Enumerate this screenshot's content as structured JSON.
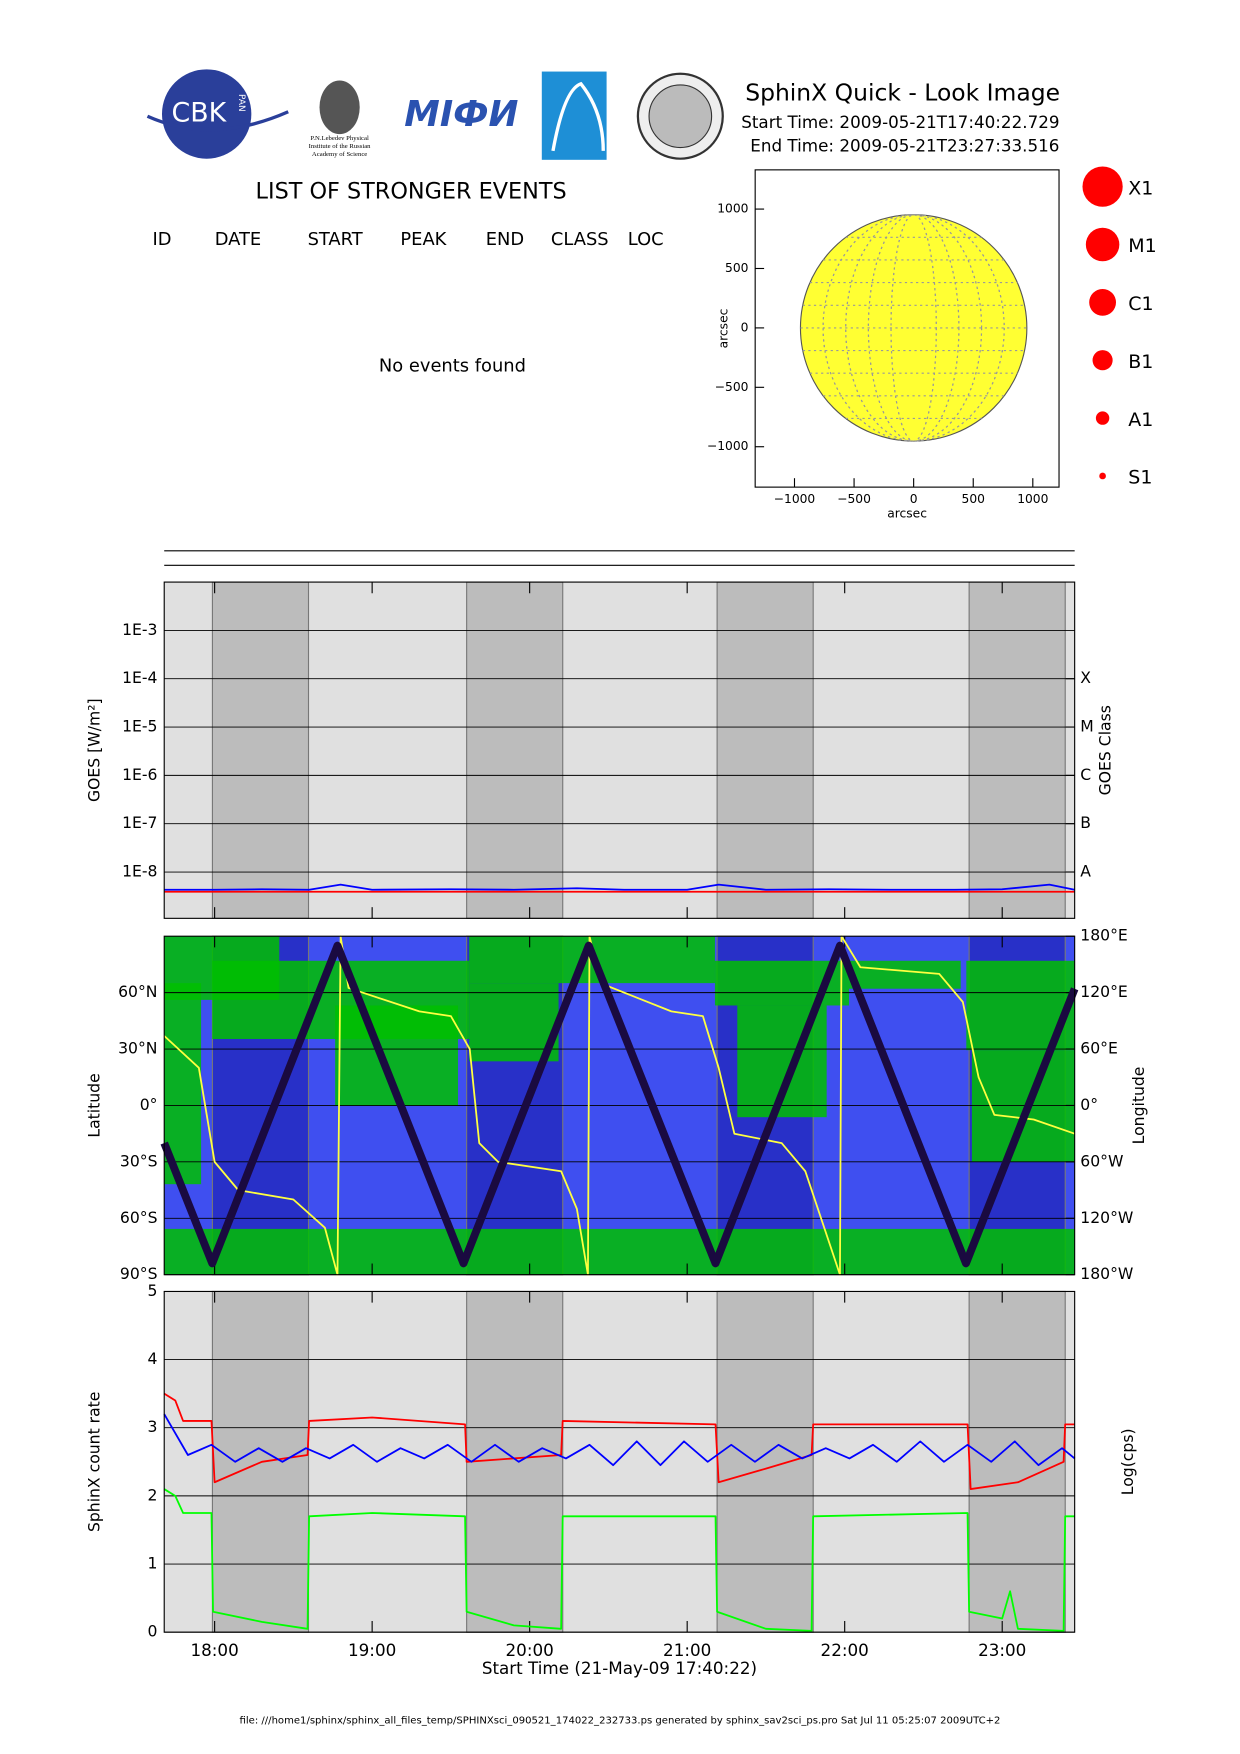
{
  "header": {
    "title": "SphinX Quick - Look Image",
    "start_time": "Start Time: 2009-05-21T17:40:22.729",
    "end_time": "End Time: 2009-05-21T23:27:33.516"
  },
  "logos": {
    "cbk": "CBK",
    "pan": "PAN",
    "lebedev": [
      "P.N.Lebedev Physical",
      "Institute of the Russian",
      "Academy of Science"
    ],
    "mifi": "MIФИ"
  },
  "events": {
    "title": "LIST OF STRONGER EVENTS",
    "columns": [
      "ID",
      "DATE",
      "START",
      "PEAK",
      "END",
      "CLASS",
      "LOC"
    ],
    "message": "No events found"
  },
  "flare_legend": [
    "X1",
    "M1",
    "C1",
    "B1",
    "A1",
    "S1"
  ],
  "shaded_intervals": [
    [
      17.986,
      18.596
    ],
    [
      19.6,
      20.21
    ],
    [
      21.19,
      21.8
    ],
    [
      22.79,
      23.4
    ]
  ],
  "footer": "file: ///home1/sphinx/sphinx_all_files_temp/SPHINXsci_090521_174022_232733.ps generated by sphinx_sav2sci_ps.pro Sat Jul 11 05:25:07 2009UTC+2",
  "chart_data": [
    {
      "type": "disk",
      "xlabel": "arcsec",
      "ylabel": "arcsec",
      "xlim": [
        -1330,
        1220
      ],
      "ylim": [
        -1340,
        1330
      ],
      "xticks": [
        {
          "value": -1000,
          "label": "−1000"
        },
        {
          "value": -500,
          "label": "−500"
        },
        0,
        500,
        1000
      ],
      "yticks": [
        {
          "value": -1000,
          "label": "−1000"
        },
        {
          "value": -500,
          "label": "−500"
        },
        0,
        500,
        1000
      ],
      "disk": {
        "x": 0,
        "y": 0,
        "r": 950,
        "color": "#ffff33"
      }
    },
    {
      "type": "line",
      "log_y": true,
      "ylabel": "GOES [W/m²]",
      "y2label": "GOES Class",
      "xlim": [
        17.68,
        23.46
      ],
      "ylim": [
        1.1e-09,
        0.01
      ],
      "yticks": [
        {
          "value": 1e-08,
          "label": "1E-8"
        },
        {
          "value": 1e-07,
          "label": "1E-7"
        },
        {
          "value": 1e-06,
          "label": "1E-6"
        },
        {
          "value": 1e-05,
          "label": "1E-5"
        },
        {
          "value": 0.0001,
          "label": "1E-4"
        },
        {
          "value": 0.001,
          "label": "1E-3"
        }
      ],
      "y2ticks": [
        {
          "value": 1e-08,
          "label": "A"
        },
        {
          "value": 1e-07,
          "label": "B"
        },
        {
          "value": 1e-06,
          "label": "C"
        },
        {
          "value": 1e-05,
          "label": "M"
        },
        {
          "value": 0.0001,
          "label": "X"
        }
      ],
      "grid": true,
      "series": [
        {
          "color": "#ff0000",
          "x": [
            17.68,
            18.0,
            18.3,
            18.6,
            18.8,
            19.0,
            19.5,
            19.9,
            20.3,
            20.6,
            21.0,
            21.2,
            21.5,
            21.9,
            22.3,
            22.7,
            23.0,
            23.3,
            23.46
          ],
          "values": [
            3.9e-09,
            3.9e-09,
            3.9e-09,
            3.9e-09,
            3.9e-09,
            3.9e-09,
            3.9e-09,
            3.9e-09,
            3.9e-09,
            3.9e-09,
            3.9e-09,
            3.9e-09,
            3.9e-09,
            3.9e-09,
            3.9e-09,
            3.9e-09,
            3.9e-09,
            3.9e-09,
            3.9e-09
          ]
        },
        {
          "color": "#0000ff",
          "x": [
            17.68,
            18.0,
            18.3,
            18.6,
            18.8,
            19.0,
            19.5,
            19.9,
            20.3,
            20.6,
            21.0,
            21.2,
            21.5,
            21.9,
            22.3,
            22.7,
            23.0,
            23.3,
            23.46
          ],
          "values": [
            4.3e-09,
            4.3e-09,
            4.4e-09,
            4.3e-09,
            5.5e-09,
            4.3e-09,
            4.4e-09,
            4.3e-09,
            4.6e-09,
            4.3e-09,
            4.3e-09,
            5.5e-09,
            4.3e-09,
            4.4e-09,
            4.3e-09,
            4.3e-09,
            4.4e-09,
            5.5e-09,
            4.3e-09
          ]
        }
      ]
    },
    {
      "type": "line",
      "ylabel": "Latitude",
      "y2label": "Longitude",
      "xlim": [
        17.68,
        23.46
      ],
      "ylim": [
        -90,
        90
      ],
      "y2lim": [
        -180,
        180
      ],
      "yticks": [
        {
          "value": -90,
          "label": "90°S"
        },
        {
          "value": -60,
          "label": "60°S"
        },
        {
          "value": -30,
          "label": "30°S"
        },
        {
          "value": 0,
          "label": "0°"
        },
        {
          "value": 30,
          "label": "30°N"
        },
        {
          "value": 60,
          "label": "60°N"
        }
      ],
      "y2ticks": [
        {
          "value": -180,
          "label": "180°W"
        },
        {
          "value": -120,
          "label": "120°W"
        },
        {
          "value": -60,
          "label": "60°W"
        },
        {
          "value": 0,
          "label": "0°"
        },
        {
          "value": 60,
          "label": "60°E"
        },
        {
          "value": 120,
          "label": "120°E"
        },
        {
          "value": 180,
          "label": "180°E"
        }
      ],
      "grid": true,
      "series": [
        {
          "color": "#ffff40",
          "axis": "y2",
          "x": [
            17.68,
            17.9,
            18.0,
            18.15,
            18.5,
            18.7,
            18.78,
            18.8,
            18.85,
            19.3,
            19.5,
            19.62,
            19.68,
            19.8,
            20.2,
            20.3,
            20.37,
            20.38,
            20.45,
            20.9,
            21.1,
            21.2,
            21.3,
            21.6,
            21.75,
            21.97,
            21.98,
            22.1,
            22.6,
            22.75,
            22.85,
            22.95,
            23.2,
            23.46
          ],
          "values": [
            74,
            40,
            -60,
            -90,
            -100,
            -130,
            -180,
            180,
            125,
            100,
            95,
            60,
            -40,
            -60,
            -70,
            -110,
            -180,
            180,
            130,
            100,
            95,
            40,
            -30,
            -40,
            -70,
            -180,
            180,
            147,
            140,
            110,
            30,
            -10,
            -15,
            -30
          ]
        },
        {
          "color": "#1a0a40",
          "x": [
            17.68,
            17.985,
            18.78,
            19.58,
            20.375,
            21.18,
            21.97,
            22.77,
            23.46
          ],
          "values": [
            -20,
            -84,
            85,
            -84,
            85,
            -84,
            85,
            -84,
            62
          ]
        }
      ]
    },
    {
      "type": "line",
      "ylabel": "SphinX count rate",
      "y2label": "Log(cps)",
      "xlabel": "Start Time (21-May-09 17:40:22)",
      "xlim": [
        17.68,
        23.46
      ],
      "ylim": [
        0,
        5
      ],
      "yticks": [
        0,
        1,
        2,
        3,
        4,
        5
      ],
      "xticks": [
        {
          "value": 18,
          "label": "18:00"
        },
        {
          "value": 19,
          "label": "19:00"
        },
        {
          "value": 20,
          "label": "20:00"
        },
        {
          "value": 21,
          "label": "21:00"
        },
        {
          "value": 22,
          "label": "22:00"
        },
        {
          "value": 23,
          "label": "23:00"
        }
      ],
      "grid": true,
      "series": [
        {
          "color": "#ff0000",
          "x": [
            17.68,
            17.75,
            17.8,
            17.98,
            18.0,
            18.3,
            18.59,
            18.6,
            19.0,
            19.59,
            19.6,
            20.2,
            20.21,
            21.18,
            21.2,
            21.5,
            21.79,
            21.8,
            22.78,
            22.8,
            23.1,
            23.39,
            23.4,
            23.46
          ],
          "values": [
            3.5,
            3.4,
            3.1,
            3.1,
            2.2,
            2.5,
            2.6,
            3.1,
            3.15,
            3.05,
            2.5,
            2.6,
            3.1,
            3.05,
            2.2,
            2.4,
            2.6,
            3.05,
            3.05,
            2.1,
            2.2,
            2.5,
            3.05,
            3.05
          ]
        },
        {
          "color": "#0000ff",
          "x": [
            17.68,
            17.83,
            17.98,
            18.13,
            18.28,
            18.43,
            18.58,
            18.73,
            18.88,
            19.03,
            19.18,
            19.33,
            19.48,
            19.63,
            19.78,
            19.93,
            20.08,
            20.23,
            20.38,
            20.53,
            20.68,
            20.83,
            20.98,
            21.13,
            21.28,
            21.43,
            21.58,
            21.73,
            21.88,
            22.03,
            22.18,
            22.33,
            22.48,
            22.63,
            22.78,
            22.93,
            23.08,
            23.23,
            23.38,
            23.46
          ],
          "values": [
            3.2,
            2.6,
            2.75,
            2.5,
            2.7,
            2.5,
            2.7,
            2.55,
            2.75,
            2.5,
            2.7,
            2.55,
            2.75,
            2.5,
            2.75,
            2.5,
            2.7,
            2.55,
            2.75,
            2.45,
            2.8,
            2.45,
            2.8,
            2.5,
            2.75,
            2.5,
            2.75,
            2.55,
            2.7,
            2.55,
            2.75,
            2.5,
            2.8,
            2.5,
            2.75,
            2.5,
            2.8,
            2.45,
            2.7,
            2.55
          ]
        },
        {
          "color": "#00ff00",
          "x": [
            17.68,
            17.75,
            17.8,
            17.98,
            17.99,
            18.3,
            18.59,
            18.6,
            19.0,
            19.59,
            19.6,
            19.9,
            20.2,
            20.21,
            21.18,
            21.19,
            21.5,
            21.79,
            21.8,
            22.78,
            22.79,
            23.0,
            23.05,
            23.1,
            23.39,
            23.4,
            23.46
          ],
          "values": [
            2.1,
            2.0,
            1.75,
            1.75,
            0.3,
            0.15,
            0.05,
            1.7,
            1.75,
            1.7,
            0.3,
            0.1,
            0.05,
            1.7,
            1.7,
            0.3,
            0.05,
            0.02,
            1.7,
            1.75,
            0.3,
            0.2,
            0.6,
            0.05,
            0.02,
            1.7,
            1.7
          ]
        }
      ]
    }
  ]
}
